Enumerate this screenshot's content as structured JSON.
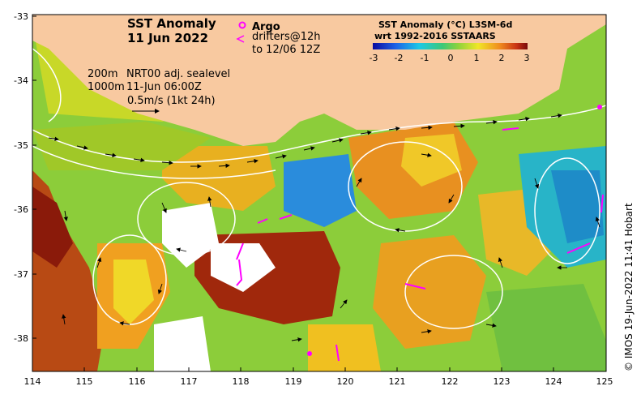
{
  "map": {
    "title_line1": "SST Anomaly",
    "title_line2": "11 Jun 2022",
    "legend_argo": "Argo",
    "legend_drifters_line1": "drifters@12h",
    "legend_drifters_line2": "to 12/06 12Z",
    "contour_200": "200m",
    "contour_1000": "1000m",
    "sealevel_label": "NRT00 adj. sealevel",
    "sealevel_time": "11-Jun 06:00Z",
    "velocity_scale": "0.5m/s (1kt 24h)",
    "colorbar_title_line1": "SST Anomaly (°C) L3SM-6d",
    "colorbar_title_line2": "wrt 1992-2016 SSTAARS",
    "colorbar_ticks": [
      "-3",
      "-2",
      "-1",
      "0",
      "1",
      "2",
      "3"
    ],
    "colorbar_range": [
      -3,
      3
    ],
    "lat_ticks": [
      "-33",
      "-34",
      "-35",
      "-36",
      "-37",
      "-38"
    ],
    "lon_ticks": [
      "114",
      "115",
      "116",
      "117",
      "118",
      "119",
      "120",
      "121",
      "122",
      "123",
      "124",
      "125"
    ],
    "lon_range": [
      114,
      125
    ],
    "lat_range": [
      -38.5,
      -33
    ],
    "colors": {
      "land": "#f8c9a0",
      "argo": "#ff00ff",
      "drifter": "#ff00ff",
      "contour": "#ffffff",
      "velocity": "#000000"
    },
    "credit": "© IMOS 19-Jun-2022 11:41 Hobart"
  }
}
